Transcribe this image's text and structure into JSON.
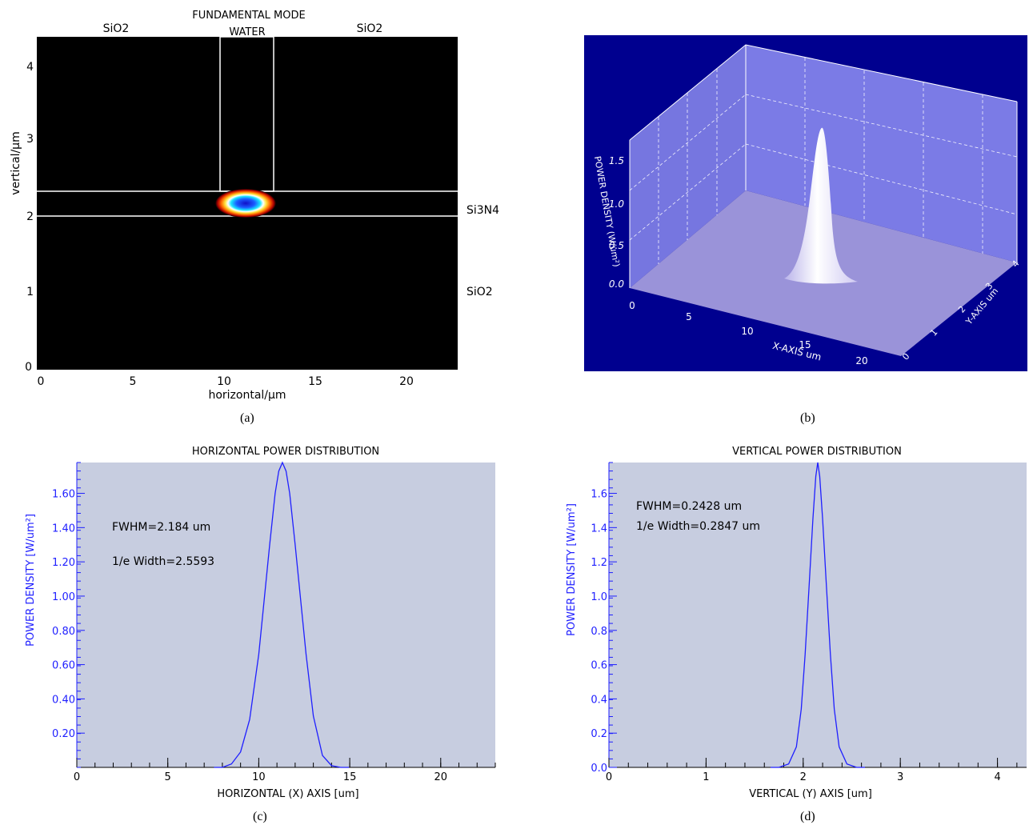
{
  "colors": {
    "panel_a_bg": "#000000",
    "panel_a_fg": "#ffffff",
    "panel_b_bg": "#00008f",
    "panel_b_wall": "#7b7be6",
    "panel_b_floor": "#9a93d9",
    "panel_cd_bg": "#c7cde0",
    "curve": "#1f1fff",
    "axis_label_blue": "#1f1fff"
  },
  "captions": {
    "a": "(a)",
    "b": "(b)",
    "c": "(c)",
    "d": "(d)"
  },
  "panel_a": {
    "title": "FUNDAMENTAL MODE",
    "region_labels": {
      "left_top": "SiO2",
      "center_top": "WATER",
      "right_top": "SiO2",
      "core": "Si3N4",
      "substrate": "SiO2"
    },
    "xlabel": "horizontal/µm",
    "ylabel": "vertical/µm",
    "xticks": [
      "0",
      "5",
      "10",
      "15",
      "20"
    ],
    "yticks": [
      "0",
      "1",
      "2",
      "3",
      "4"
    ]
  },
  "panel_b": {
    "zlabel": "POWER DENSITY (W/um²)",
    "xlabel": "X-AXIS um",
    "ylabel": "Y-AXIS um",
    "xticks": [
      "0",
      "5",
      "10",
      "15",
      "20"
    ],
    "zticks": [
      "0.0",
      "0.5",
      "1.0",
      "1.5"
    ],
    "yticks": [
      "0",
      "1",
      "2",
      "3",
      "4"
    ]
  },
  "chart_data": [
    {
      "type": "heatmap",
      "title": "FUNDAMENTAL MODE",
      "xlabel": "horizontal/µm",
      "ylabel": "vertical/µm",
      "xlim": [
        0,
        23
      ],
      "ylim": [
        0,
        4.3
      ],
      "mode_center": [
        11.3,
        2.15
      ],
      "waveguide_core_y": [
        2.0,
        2.33
      ],
      "water_channel_x": [
        10.0,
        12.8
      ]
    },
    {
      "type": "surface",
      "zlabel": "POWER DENSITY (W/um²)",
      "xlabel": "X-AXIS um",
      "ylabel": "Y-AXIS um",
      "xlim": [
        0,
        23
      ],
      "ylim": [
        0,
        4.3
      ],
      "zlim": [
        0,
        1.8
      ],
      "peak": 1.78
    },
    {
      "type": "line",
      "title": "HORIZONTAL POWER DISTRIBUTION",
      "xlabel": "HORIZONTAL (X) AXIS [um]",
      "ylabel": "POWER DENSITY [W/um²]",
      "xlim": [
        0,
        23
      ],
      "ylim": [
        0,
        1.78
      ],
      "xticks": [
        "0",
        "5",
        "10",
        "15",
        "20"
      ],
      "yticks": [
        "0.20",
        "0.40",
        "0.60",
        "0.80",
        "1.00",
        "1.20",
        "1.40",
        "1.60"
      ],
      "annotations": [
        "FWHM=2.184 um",
        "1/e Width=2.5593"
      ],
      "x": [
        8.0,
        8.5,
        9.0,
        9.5,
        10.0,
        10.3,
        10.6,
        10.9,
        11.1,
        11.3,
        11.5,
        11.7,
        12.0,
        12.3,
        12.6,
        13.0,
        13.5,
        14.0,
        14.5
      ],
      "values": [
        0.0,
        0.02,
        0.09,
        0.28,
        0.66,
        0.98,
        1.3,
        1.6,
        1.73,
        1.78,
        1.73,
        1.6,
        1.3,
        0.98,
        0.66,
        0.3,
        0.07,
        0.01,
        0.0
      ]
    },
    {
      "type": "line",
      "title": "VERTICAL POWER DISTRIBUTION",
      "xlabel": "VERTICAL (Y) AXIS [um]",
      "ylabel": "POWER DENSITY [W/um²]",
      "xlim": [
        0,
        4.3
      ],
      "ylim": [
        0,
        1.78
      ],
      "xticks": [
        "0",
        "1",
        "2",
        "3",
        "4"
      ],
      "yticks": [
        "0.0",
        "0.2",
        "0.4",
        "0.6",
        "0.8",
        "1.0",
        "1.2",
        "1.4",
        "1.6"
      ],
      "annotations": [
        "FWHM=0.2428 um",
        "1/e Width=0.2847 um"
      ],
      "x": [
        1.75,
        1.85,
        1.93,
        1.98,
        2.02,
        2.06,
        2.1,
        2.13,
        2.15,
        2.17,
        2.2,
        2.24,
        2.28,
        2.32,
        2.37,
        2.45,
        2.55
      ],
      "values": [
        0.0,
        0.02,
        0.12,
        0.34,
        0.66,
        1.05,
        1.45,
        1.7,
        1.78,
        1.7,
        1.45,
        1.05,
        0.66,
        0.34,
        0.12,
        0.02,
        0.0
      ]
    }
  ]
}
